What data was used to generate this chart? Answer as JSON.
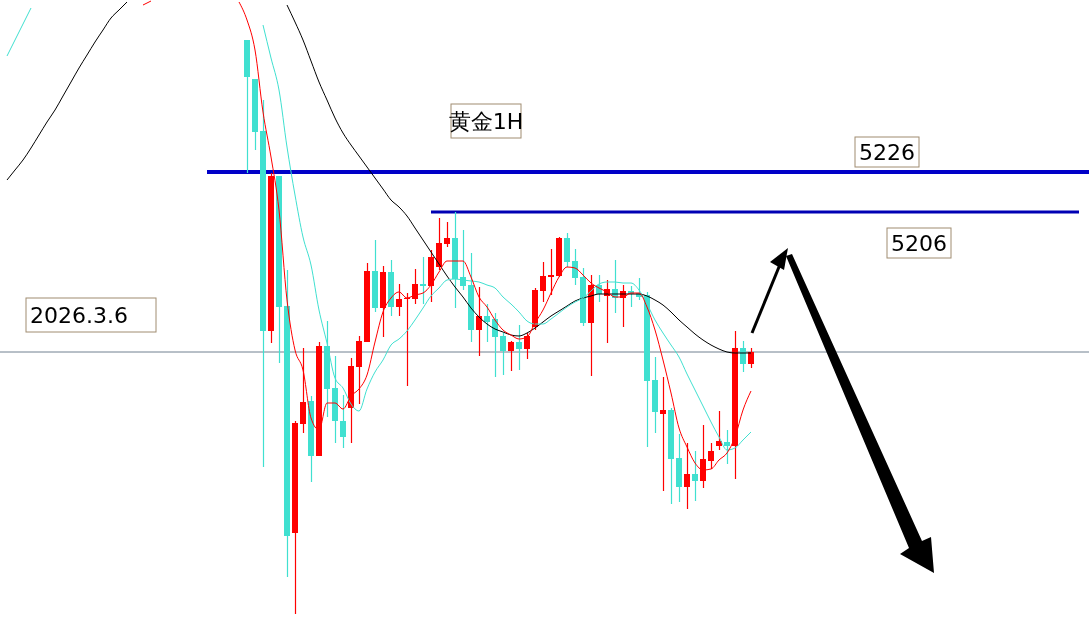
{
  "chart_data": {
    "type": "candlestick",
    "categories": [
      null,
      null,
      null,
      null,
      null,
      null,
      null,
      null,
      null,
      null,
      null,
      null,
      null,
      null,
      null,
      null,
      null,
      null,
      null,
      null,
      null,
      null,
      null,
      null,
      null,
      null,
      null,
      null,
      null,
      null,
      null,
      null,
      null,
      null,
      null,
      null,
      null,
      null,
      null,
      null,
      null,
      null,
      null,
      null,
      null,
      null,
      null,
      null,
      null,
      null,
      null,
      null,
      null,
      null,
      null,
      null,
      null,
      null,
      null,
      null,
      null,
      null,
      null,
      null,
      null,
      null,
      null,
      null,
      null,
      null,
      null,
      null,
      null,
      null,
      null,
      null,
      null,
      null,
      null,
      null,
      null,
      null,
      null,
      null,
      null,
      null,
      null,
      null,
      null,
      null,
      null,
      null,
      null,
      null,
      null,
      null,
      null,
      null,
      null,
      null,
      null,
      null,
      null,
      null,
      null,
      null,
      null,
      null,
      null,
      null,
      null,
      null,
      null,
      null,
      null,
      null,
      null,
      null,
      null,
      null,
      null,
      null,
      null,
      null,
      null,
      null,
      null,
      null,
      null,
      null,
      null,
      null,
      null,
      null,
      null
    ],
    "ohlc": [
      null,
      null,
      null,
      null,
      null,
      null,
      null,
      null,
      null,
      null,
      null,
      null,
      null,
      null,
      null,
      null,
      null,
      null,
      null,
      null,
      null,
      null,
      null,
      null,
      null,
      null,
      null,
      null,
      null,
      null,
      [
        5292,
        5292,
        5225.5,
        5273.5
      ],
      [
        5272.5,
        5272.5,
        5237,
        5246
      ],
      [
        5246.5,
        5262,
        5078.5,
        5146.5
      ],
      [
        5146.5,
        5225.5,
        5140.5,
        5224
      ],
      [
        5224,
        5224,
        5130.5,
        5158.5
      ],
      [
        5159,
        5177,
        5023.5,
        5044
      ],
      [
        5045.5,
        5101.5,
        5005,
        5100.5
      ],
      [
        5100,
        5138,
        5095.5,
        5111
      ],
      [
        5111.5,
        5114,
        5071,
        5084
      ],
      [
        5084,
        5141,
        5084,
        5139
      ],
      [
        5139,
        5151.5,
        5103.5,
        5117.5
      ],
      [
        5118,
        5134,
        5090.5,
        5101.5
      ],
      [
        5101.5,
        5114.5,
        5088,
        5093.5
      ],
      [
        5108,
        5133,
        5090.5,
        5129
      ],
      [
        5128.5,
        5144,
        5110,
        5141.5
      ],
      [
        5141,
        5180.5,
        5141,
        5176.5
      ],
      [
        5176.5,
        5192,
        5156,
        5158
      ],
      [
        5158,
        5179,
        5143.5,
        5176
      ],
      [
        5176,
        5182,
        5154,
        5158.5
      ],
      [
        5158.5,
        5170,
        5154,
        5162.5
      ],
      [
        5162.5,
        5165.5,
        5119,
        5163
      ],
      [
        5162.5,
        5177.5,
        5160,
        5170
      ],
      [
        5170,
        5183.5,
        5160,
        5169
      ],
      [
        5169,
        5187,
        5161,
        5183.5
      ],
      [
        5178.5,
        5203,
        5177,
        5190.5
      ],
      [
        5190,
        5201,
        5188.5,
        5193
      ],
      [
        5193,
        5206,
        5158,
        5172.5
      ],
      [
        5173.5,
        5197,
        5167,
        5169
      ],
      [
        5169.5,
        5185.5,
        5141,
        5147
      ],
      [
        5147,
        5168.5,
        5134,
        5154
      ],
      [
        5154,
        5160,
        5141,
        5151
      ],
      [
        5152.5,
        5155.5,
        5123.5,
        5143.5
      ],
      [
        5144,
        5145.5,
        5124.5,
        5136.5
      ],
      [
        5136.5,
        5141.5,
        5126.5,
        5141
      ],
      [
        5141,
        5149.5,
        5127,
        5137.5
      ],
      [
        5137.5,
        5145.5,
        5132.5,
        5144
      ],
      [
        5148.5,
        5168,
        5147,
        5167
      ],
      [
        5166.5,
        5181,
        5161,
        5174
      ],
      [
        5173.5,
        5187.5,
        5164.5,
        5174.5
      ],
      [
        5174,
        5193.5,
        5173.5,
        5193
      ],
      [
        5193,
        5195.5,
        5178.5,
        5181
      ],
      [
        5181.5,
        5187.5,
        5169.5,
        5173
      ],
      [
        5173.5,
        5178,
        5149,
        5150.5
      ],
      [
        5150.5,
        5174.5,
        5124,
        5169.5
      ],
      [
        5169.5,
        5174.5,
        5161,
        5165
      ],
      [
        5164,
        5172,
        5140.5,
        5167.5
      ],
      [
        5167.5,
        5182,
        5155.5,
        5163
      ],
      [
        5163,
        5169.5,
        5148.5,
        5166.5
      ],
      [
        5166.5,
        5169,
        5158.5,
        5165
      ],
      [
        5165.5,
        5173,
        5162,
        5163.5
      ],
      [
        5164.5,
        5166,
        5088.5,
        5121.5
      ],
      [
        5122,
        5133.5,
        5095.5,
        5106
      ],
      [
        5105,
        5123.5,
        5066.5,
        5107
      ],
      [
        5107,
        5108,
        5060,
        5082.5
      ],
      [
        5083,
        5095,
        5061,
        5068.5
      ],
      [
        5068.5,
        5090.5,
        5057.5,
        5075
      ],
      [
        5075,
        5086.5,
        5061.5,
        5071.5
      ],
      [
        5071.5,
        5099.5,
        5068,
        5082.5
      ],
      [
        5081.5,
        5090.5,
        5077.5,
        5086.5
      ],
      [
        5089,
        5106.5,
        5087,
        5091.5
      ],
      [
        5091,
        5097,
        5080,
        5089
      ],
      [
        5089,
        5146.5,
        5072.5,
        5138
      ],
      [
        5138,
        5141.5,
        5126,
        5130
      ],
      [
        5130,
        5138,
        5128,
        5136
      ],
      null,
      null,
      null,
      null,
      null,
      null,
      null,
      null,
      null,
      null,
      null,
      null,
      null,
      null,
      null,
      null,
      null,
      null,
      null,
      null,
      null,
      null,
      null,
      null,
      null,
      null,
      null,
      null,
      null,
      null,
      null,
      null,
      null,
      null,
      null,
      null,
      null,
      null,
      null,
      null,
      null
    ],
    "colors": [
      null,
      null,
      null,
      null,
      null,
      null,
      null,
      null,
      null,
      null,
      null,
      null,
      null,
      null,
      null,
      null,
      null,
      null,
      null,
      null,
      null,
      null,
      null,
      null,
      null,
      null,
      null,
      null,
      null,
      null,
      "#40e0d0",
      "#40e0d0",
      "#40e0d0",
      "#ff0000",
      "#40e0d0",
      "#40e0d0",
      "#ff0000",
      "#ff0000",
      "#40e0d0",
      "#ff0000",
      "#40e0d0",
      "#40e0d0",
      "#40e0d0",
      "#ff0000",
      "#ff0000",
      "#ff0000",
      "#40e0d0",
      "#ff0000",
      "#40e0d0",
      "#ff0000",
      "#ff0000",
      "#ff0000",
      "#40e0d0",
      "#ff0000",
      "#ff0000",
      "#ff0000",
      "#40e0d0",
      "#40e0d0",
      "#40e0d0",
      "#ff0000",
      "#40e0d0",
      "#40e0d0",
      "#40e0d0",
      "#ff0000",
      "#40e0d0",
      "#ff0000",
      "#ff0000",
      "#ff0000",
      "#ff0000",
      "#ff0000",
      "#40e0d0",
      "#40e0d0",
      "#40e0d0",
      "#ff0000",
      "#40e0d0",
      "#ff0000",
      "#40e0d0",
      "#ff0000",
      "#40e0d0",
      "#40e0d0",
      "#40e0d0",
      "#40e0d0",
      "#ff0000",
      "#40e0d0",
      "#40e0d0",
      "#ff0000",
      "#40e0d0",
      "#ff0000",
      "#ff0000",
      "#ff0000",
      "#40e0d0",
      "#ff0000",
      "#40e0d0",
      "#ff0000",
      null,
      null,
      null,
      null,
      null,
      null,
      null,
      null,
      null,
      null,
      null,
      null,
      null,
      null,
      null,
      null,
      null,
      null,
      null,
      null,
      null,
      null,
      null,
      null,
      null,
      null,
      null,
      null,
      null,
      null,
      null,
      null,
      null,
      null,
      null,
      null,
      null,
      null,
      null,
      null,
      null
    ],
    "series": [
      {
        "type": "line",
        "color": "#000000",
        "values": [
          5222,
          5227,
          5232,
          5238,
          5244.5,
          5251,
          5257,
          5264,
          5271,
          5278,
          5284.5,
          5291,
          5297,
          5303,
          5307,
          5311,
          null,
          null,
          null,
          null,
          null,
          null,
          null,
          null,
          null,
          null,
          null,
          null,
          null,
          null,
          null,
          null,
          null,
          null,
          null,
          5309.5,
          5301,
          5292,
          5281.5,
          5271,
          5262,
          5253,
          5245.5,
          5239.5,
          5234,
          5228.5,
          5223,
          5217.5,
          5212,
          5208.5,
          5204,
          5198,
          5192,
          5186,
          5180,
          5174,
          5168.5,
          5163.5,
          5158,
          5153.5,
          5150,
          5147.5,
          5146,
          5144.5,
          5144,
          5145.5,
          5148,
          5151,
          5154,
          5156.5,
          5159,
          5161.5,
          5163,
          5164,
          5165,
          5165,
          5165,
          5165,
          5165,
          5165,
          5164,
          5162,
          5159.5,
          5156,
          5152,
          5148.5,
          5145,
          5142,
          5139.5,
          5137.5,
          5136,
          5135.5,
          5135.5,
          5135.5,
          null,
          null,
          null,
          null,
          null,
          null,
          null,
          null,
          null,
          null,
          null,
          null,
          null,
          null,
          null,
          null,
          null,
          null,
          null,
          null,
          null,
          null,
          null,
          null,
          null,
          null,
          null,
          null,
          null,
          null,
          null,
          null,
          null,
          null,
          null,
          null,
          null,
          null,
          null,
          null,
          null
        ]
      },
      {
        "type": "line",
        "color": "#40e0d0",
        "values": [
          5284,
          5292,
          5300,
          5308,
          null,
          null,
          null,
          null,
          null,
          null,
          null,
          null,
          null,
          null,
          null,
          null,
          null,
          null,
          null,
          null,
          null,
          null,
          null,
          null,
          null,
          null,
          null,
          null,
          null,
          null,
          null,
          null,
          5299.5,
          5283,
          5267,
          5238.5,
          5214.5,
          5193.5,
          5179.5,
          5157,
          5140.5,
          5123,
          5118,
          5110,
          5106.5,
          5117.5,
          5126,
          5132,
          5139.5,
          5142.5,
          5146.5,
          5152,
          5158,
          5164,
          5168,
          5172,
          5172.5,
          5172,
          5171.5,
          5171,
          5169.5,
          5168,
          5163.5,
          5160,
          5156,
          5151.5,
          5150,
          5150,
          5152.5,
          5155.5,
          5158.5,
          5161,
          5163,
          5166.5,
          5170,
          5171,
          5171,
          5170.5,
          5170.5,
          5167,
          5160,
          5152,
          5145.5,
          5139.5,
          5133.5,
          5125,
          5117,
          5109,
          5101,
          5093.5,
          5087,
          5088,
          5092,
          5096,
          null,
          null,
          null,
          null,
          null,
          null,
          null,
          null,
          null,
          null,
          null,
          null,
          null,
          null,
          null,
          null,
          null,
          null,
          null,
          null,
          null,
          null,
          null,
          null,
          null,
          null,
          null,
          null,
          null,
          null,
          null,
          null,
          null,
          null,
          null,
          null,
          null,
          null,
          null,
          null,
          null
        ]
      },
      {
        "type": "line",
        "color": "#ff0000",
        "values": [
          null,
          null,
          null,
          null,
          null,
          null,
          null,
          null,
          null,
          null,
          null,
          null,
          null,
          null,
          null,
          null,
          null,
          5309.5,
          5311.5,
          null,
          null,
          null,
          null,
          null,
          null,
          null,
          null,
          null,
          null,
          5311,
          5302,
          5287,
          5256,
          5233.5,
          5207,
          5162,
          5137,
          5127,
          5103,
          5097,
          5110.5,
          5110.5,
          5107.5,
          5114,
          5117.5,
          5124.5,
          5141,
          5156,
          5163,
          5166,
          5163,
          5164.5,
          5165.5,
          5169.5,
          5176,
          5181.5,
          5181.5,
          5181.5,
          5173.5,
          5163.5,
          5158.5,
          5152,
          5147,
          5144.5,
          5142.5,
          5143.5,
          5150.5,
          5157,
          5165.5,
          5173.5,
          5178.5,
          5178,
          5174.5,
          5170.5,
          5168,
          5166,
          5163.5,
          5163.5,
          5165.5,
          5165.5,
          5158.5,
          5147,
          5132,
          5115.5,
          5098,
          5088.5,
          5080.5,
          5077,
          5077.5,
          5082,
          5085.5,
          5093.5,
          5107,
          5116.5,
          null,
          null,
          null,
          null,
          null,
          null,
          null,
          null,
          null,
          null,
          null,
          null,
          null,
          null,
          null,
          null,
          null,
          null,
          null,
          null,
          null,
          null,
          null,
          null,
          null,
          null,
          null,
          null,
          null,
          null,
          null,
          null,
          null,
          null,
          null,
          null,
          null,
          null,
          null,
          null,
          null
        ]
      }
    ],
    "ylim": [
      4997.5,
      5312
    ],
    "tick_labels": false,
    "ref_lines": [
      {
        "axis": "y",
        "value": 5226,
        "label": "5226",
        "color": "#0000c8"
      },
      {
        "axis": "y",
        "value": 5206,
        "label": "5206",
        "color": "#0000b4"
      },
      {
        "axis": "y",
        "value": 5136,
        "color": "#708090"
      }
    ],
    "annotations": [
      "黄金1H",
      "2026.3.6"
    ]
  }
}
